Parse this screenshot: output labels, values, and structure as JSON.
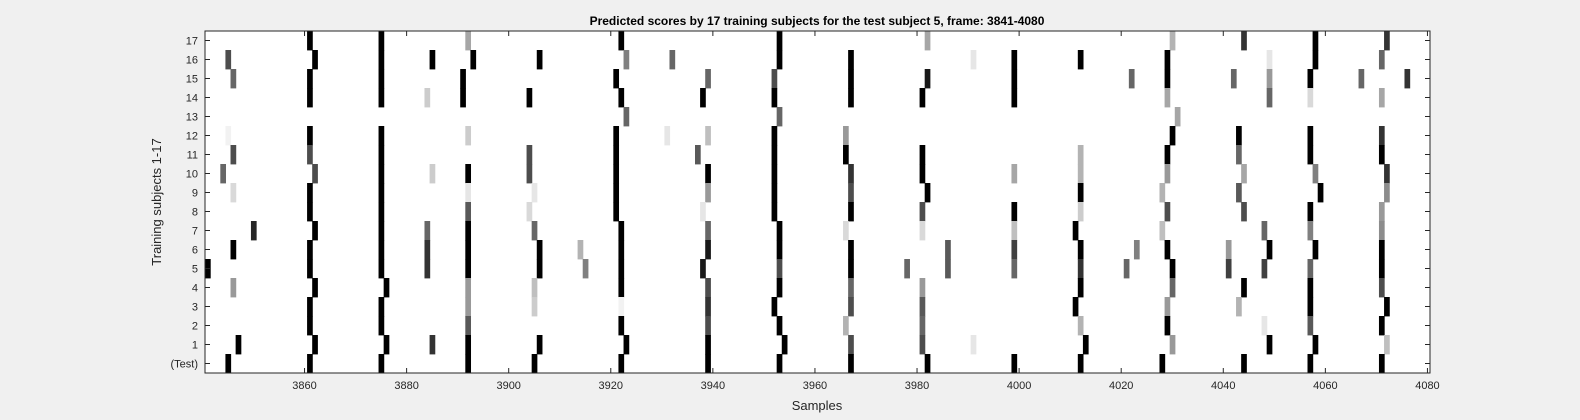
{
  "chart_data": {
    "type": "heatmap",
    "title": "Predicted scores by 17 training subjects for the test subject 5, frame: 3841-4080",
    "xlabel": "Samples",
    "ylabel": "Training subjects 1-17",
    "xlim": [
      3841,
      4080
    ],
    "x_ticks": [
      3860,
      3880,
      3900,
      3920,
      3940,
      3960,
      3980,
      4000,
      4020,
      4040,
      4060,
      4080
    ],
    "y_tick_labels": [
      "17",
      "16",
      "15",
      "14",
      "13",
      "12",
      "11",
      "10",
      "9",
      "8",
      "7",
      "6",
      "5",
      "4",
      "3",
      "2",
      "1",
      "(Test)"
    ],
    "colormap": "gray-inverted",
    "background_color": "#ffffff",
    "rows": [
      {
        "label": "17",
        "cells": [
          [
            3861,
            1
          ],
          [
            3875,
            1
          ],
          [
            3892,
            0.35
          ],
          [
            3922,
            1
          ],
          [
            3953,
            1
          ],
          [
            3982,
            0.35
          ],
          [
            4030,
            0.3
          ],
          [
            4044,
            0.8
          ],
          [
            4058,
            1
          ],
          [
            4072,
            0.8
          ]
        ]
      },
      {
        "label": "16",
        "cells": [
          [
            3845,
            0.7
          ],
          [
            3862,
            1
          ],
          [
            3875,
            1
          ],
          [
            3885,
            1
          ],
          [
            3893,
            1
          ],
          [
            3906,
            1
          ],
          [
            3923,
            0.5
          ],
          [
            3932,
            0.6
          ],
          [
            3953,
            1
          ],
          [
            3967,
            1
          ],
          [
            3991,
            0.1
          ],
          [
            3999,
            1
          ],
          [
            4012,
            1
          ],
          [
            4029,
            1
          ],
          [
            4049,
            0.1
          ],
          [
            4058,
            1
          ],
          [
            4071,
            0.6
          ]
        ]
      },
      {
        "label": "15",
        "cells": [
          [
            3846,
            0.6
          ],
          [
            3861,
            1
          ],
          [
            3875,
            1
          ],
          [
            3891,
            1
          ],
          [
            3921,
            1
          ],
          [
            3939,
            0.6
          ],
          [
            3952,
            0.7
          ],
          [
            3967,
            1
          ],
          [
            3982,
            0.9
          ],
          [
            3999,
            1
          ],
          [
            4022,
            0.6
          ],
          [
            4029,
            1
          ],
          [
            4042,
            0.6
          ],
          [
            4049,
            0.4
          ],
          [
            4057,
            1
          ],
          [
            4067,
            0.6
          ],
          [
            4076,
            0.8
          ]
        ]
      },
      {
        "label": "14",
        "cells": [
          [
            3861,
            1
          ],
          [
            3875,
            1
          ],
          [
            3884,
            0.2
          ],
          [
            3891,
            1
          ],
          [
            3904,
            1
          ],
          [
            3922,
            1
          ],
          [
            3938,
            1
          ],
          [
            3952,
            1
          ],
          [
            3967,
            1
          ],
          [
            3981,
            1
          ],
          [
            3999,
            1
          ],
          [
            4029,
            0.35
          ],
          [
            4049,
            0.6
          ],
          [
            4057,
            0.15
          ],
          [
            4071,
            0.35
          ]
        ]
      },
      {
        "label": "13",
        "cells": [
          [
            3923,
            0.6
          ],
          [
            3953,
            0.6
          ],
          [
            4031,
            0.35
          ]
        ]
      },
      {
        "label": "12",
        "cells": [
          [
            3845,
            0.05
          ],
          [
            3861,
            1
          ],
          [
            3875,
            1
          ],
          [
            3892,
            0.2
          ],
          [
            3921,
            1
          ],
          [
            3931,
            0.1
          ],
          [
            3939,
            0.25
          ],
          [
            3952,
            1
          ],
          [
            3966,
            0.4
          ],
          [
            4030,
            1
          ],
          [
            4043,
            1
          ],
          [
            4057,
            1
          ],
          [
            4071,
            0.8
          ]
        ]
      },
      {
        "label": "11",
        "cells": [
          [
            3846,
            0.7
          ],
          [
            3861,
            0.7
          ],
          [
            3875,
            1
          ],
          [
            3904,
            0.7
          ],
          [
            3921,
            1
          ],
          [
            3937,
            0.65
          ],
          [
            3952,
            1
          ],
          [
            3966,
            1
          ],
          [
            3981,
            1
          ],
          [
            4012,
            0.3
          ],
          [
            4029,
            1
          ],
          [
            4043,
            0.6
          ],
          [
            4057,
            1
          ],
          [
            4071,
            1
          ]
        ]
      },
      {
        "label": "10",
        "cells": [
          [
            3844,
            0.6
          ],
          [
            3862,
            0.7
          ],
          [
            3875,
            1
          ],
          [
            3885,
            0.2
          ],
          [
            3892,
            1
          ],
          [
            3904,
            0.7
          ],
          [
            3921,
            1
          ],
          [
            3939,
            1
          ],
          [
            3952,
            1
          ],
          [
            3967,
            0.8
          ],
          [
            3981,
            1
          ],
          [
            3999,
            0.35
          ],
          [
            4012,
            0.3
          ],
          [
            4029,
            0.4
          ],
          [
            4044,
            0.35
          ],
          [
            4058,
            0.5
          ],
          [
            4072,
            0.8
          ]
        ]
      },
      {
        "label": "9",
        "cells": [
          [
            3846,
            0.15
          ],
          [
            3861,
            1
          ],
          [
            3875,
            1
          ],
          [
            3892,
            0.1
          ],
          [
            3905,
            0.1
          ],
          [
            3921,
            1
          ],
          [
            3939,
            0.4
          ],
          [
            3952,
            1
          ],
          [
            3967,
            0.7
          ],
          [
            3982,
            1
          ],
          [
            4012,
            1
          ],
          [
            4028,
            0.3
          ],
          [
            4043,
            0.65
          ],
          [
            4059,
            1
          ],
          [
            4072,
            0.45
          ]
        ]
      },
      {
        "label": "8",
        "cells": [
          [
            3861,
            1
          ],
          [
            3875,
            1
          ],
          [
            3892,
            0.65
          ],
          [
            3904,
            0.15
          ],
          [
            3921,
            1
          ],
          [
            3938,
            0.1
          ],
          [
            3952,
            1
          ],
          [
            3967,
            1
          ],
          [
            3981,
            0.7
          ],
          [
            3999,
            1
          ],
          [
            4012,
            0.2
          ],
          [
            4029,
            0.7
          ],
          [
            4044,
            0.7
          ],
          [
            4057,
            1
          ],
          [
            4071,
            0.4
          ]
        ]
      },
      {
        "label": "7",
        "cells": [
          [
            3850,
            0.85
          ],
          [
            3862,
            1
          ],
          [
            3875,
            1
          ],
          [
            3884,
            0.6
          ],
          [
            3892,
            1
          ],
          [
            3905,
            0.6
          ],
          [
            3922,
            1
          ],
          [
            3939,
            0.6
          ],
          [
            3953,
            1
          ],
          [
            3966,
            0.15
          ],
          [
            3981,
            0.15
          ],
          [
            3999,
            0.25
          ],
          [
            4011,
            1
          ],
          [
            4028,
            0.25
          ],
          [
            4048,
            0.6
          ],
          [
            4057,
            0.5
          ],
          [
            4071,
            0.45
          ]
        ]
      },
      {
        "label": "6",
        "cells": [
          [
            3846,
            1
          ],
          [
            3861,
            1
          ],
          [
            3875,
            1
          ],
          [
            3884,
            0.8
          ],
          [
            3892,
            1
          ],
          [
            3906,
            1
          ],
          [
            3914,
            0.3
          ],
          [
            3922,
            1
          ],
          [
            3939,
            0.9
          ],
          [
            3953,
            1
          ],
          [
            3967,
            1
          ],
          [
            3986,
            0.65
          ],
          [
            3999,
            0.75
          ],
          [
            4012,
            1
          ],
          [
            4023,
            0.5
          ],
          [
            4029,
            1
          ],
          [
            4041,
            0.4
          ],
          [
            4049,
            1
          ],
          [
            4058,
            1
          ],
          [
            4071,
            1
          ]
        ]
      },
      {
        "label": "5",
        "cells": [
          [
            3841,
            1
          ],
          [
            3861,
            1
          ],
          [
            3875,
            1
          ],
          [
            3884,
            0.8
          ],
          [
            3892,
            1
          ],
          [
            3906,
            1
          ],
          [
            3915,
            0.5
          ],
          [
            3922,
            1
          ],
          [
            3938,
            0.9
          ],
          [
            3953,
            0.7
          ],
          [
            3967,
            1
          ],
          [
            3978,
            0.6
          ],
          [
            3986,
            0.65
          ],
          [
            3999,
            0.6
          ],
          [
            4012,
            0.8
          ],
          [
            4021,
            0.6
          ],
          [
            4030,
            1
          ],
          [
            4041,
            0.75
          ],
          [
            4048,
            0.75
          ],
          [
            4057,
            0.6
          ],
          [
            4071,
            1
          ]
        ]
      },
      {
        "label": "4",
        "cells": [
          [
            3846,
            0.4
          ],
          [
            3862,
            1
          ],
          [
            3876,
            1
          ],
          [
            3892,
            0.4
          ],
          [
            3905,
            0.25
          ],
          [
            3922,
            1
          ],
          [
            3939,
            0.7
          ],
          [
            3953,
            1
          ],
          [
            3967,
            0.6
          ],
          [
            3981,
            0.4
          ],
          [
            4012,
            1
          ],
          [
            4030,
            0.6
          ],
          [
            4044,
            1
          ],
          [
            4057,
            1
          ],
          [
            4071,
            0.7
          ]
        ]
      },
      {
        "label": "3",
        "cells": [
          [
            3861,
            1
          ],
          [
            3875,
            1
          ],
          [
            3892,
            0.4
          ],
          [
            3905,
            0.2
          ],
          [
            3922,
            0.05
          ],
          [
            3939,
            0.8
          ],
          [
            3952,
            1
          ],
          [
            3967,
            0.7
          ],
          [
            3981,
            0.65
          ],
          [
            4011,
            1
          ],
          [
            4029,
            0.4
          ],
          [
            4043,
            0.3
          ],
          [
            4057,
            1
          ],
          [
            4072,
            1
          ]
        ]
      },
      {
        "label": "2",
        "cells": [
          [
            3861,
            1
          ],
          [
            3875,
            1
          ],
          [
            3892,
            0.65
          ],
          [
            3922,
            1
          ],
          [
            3939,
            0.7
          ],
          [
            3953,
            1
          ],
          [
            3966,
            0.3
          ],
          [
            3981,
            0.6
          ],
          [
            4012,
            0.3
          ],
          [
            4029,
            1
          ],
          [
            4048,
            0.1
          ],
          [
            4057,
            0.65
          ],
          [
            4071,
            1
          ]
        ]
      },
      {
        "label": "1",
        "cells": [
          [
            3847,
            1
          ],
          [
            3862,
            1
          ],
          [
            3876,
            1
          ],
          [
            3885,
            0.8
          ],
          [
            3892,
            1
          ],
          [
            3906,
            1
          ],
          [
            3923,
            1
          ],
          [
            3939,
            1
          ],
          [
            3954,
            1
          ],
          [
            3967,
            0.7
          ],
          [
            3981,
            0.7
          ],
          [
            3991,
            0.1
          ],
          [
            4013,
            1
          ],
          [
            4030,
            0.4
          ],
          [
            4049,
            1
          ],
          [
            4058,
            1
          ],
          [
            4072,
            0.25
          ]
        ]
      },
      {
        "label": "(Test)",
        "cells": [
          [
            3845,
            1
          ],
          [
            3861,
            1
          ],
          [
            3875,
            1
          ],
          [
            3892,
            1
          ],
          [
            3905,
            1
          ],
          [
            3922,
            1
          ],
          [
            3939,
            1
          ],
          [
            3953,
            1
          ],
          [
            3967,
            1
          ],
          [
            3982,
            1
          ],
          [
            3999,
            1
          ],
          [
            4012,
            1
          ],
          [
            4028,
            1
          ],
          [
            4044,
            1
          ],
          [
            4057,
            1
          ],
          [
            4071,
            1
          ]
        ]
      }
    ]
  }
}
